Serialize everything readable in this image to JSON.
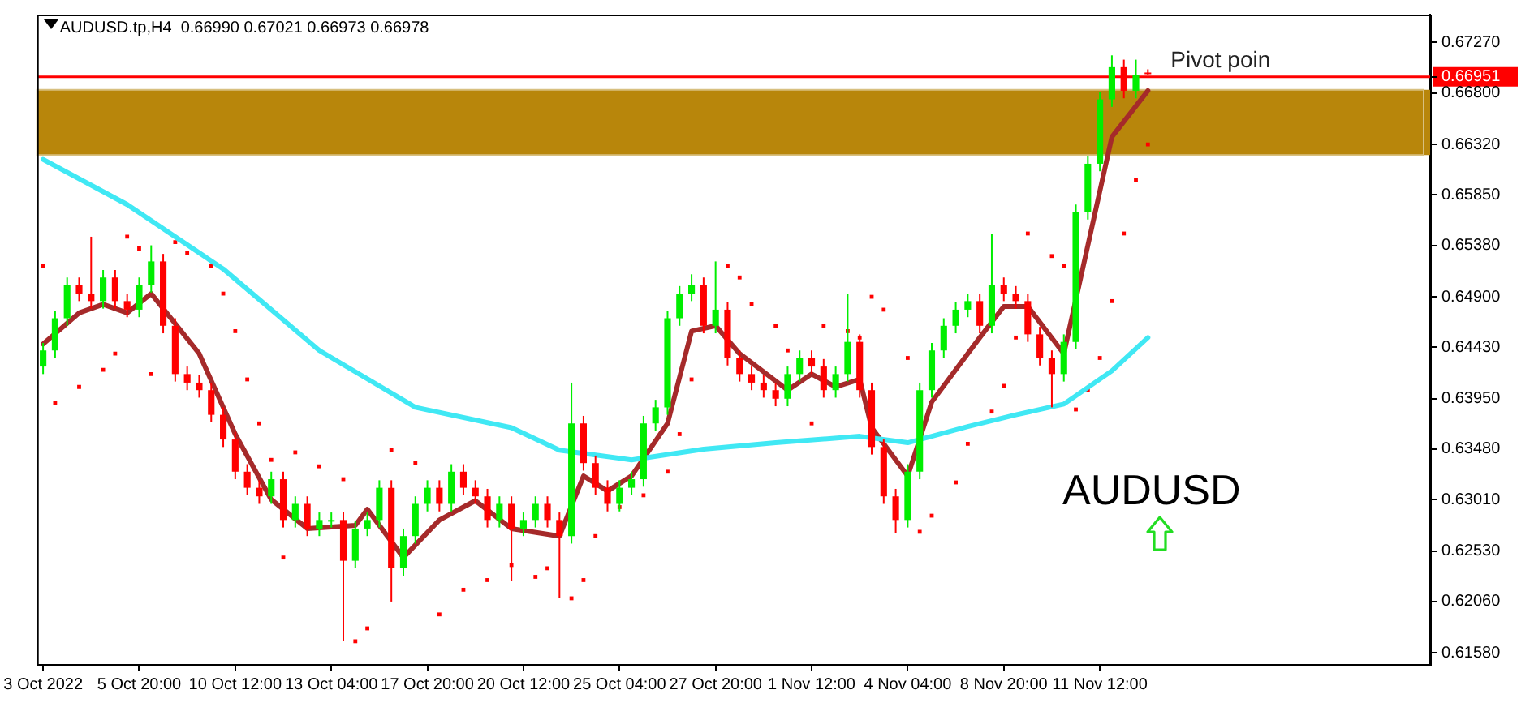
{
  "chart_data": {
    "type": "candlestick",
    "title": "AUDUSD.tp,H4  0.66990 0.67021 0.66973 0.66978",
    "categories": [
      "3 Oct 2022",
      null,
      null,
      null,
      null,
      null,
      null,
      null,
      "5 Oct 20:00",
      null,
      null,
      null,
      null,
      null,
      null,
      null,
      "10 Oct 12:00",
      null,
      null,
      null,
      null,
      null,
      null,
      null,
      "13 Oct 04:00",
      null,
      null,
      null,
      null,
      null,
      null,
      null,
      "17 Oct 20:00",
      null,
      null,
      null,
      null,
      null,
      null,
      null,
      "20 Oct 12:00",
      null,
      null,
      null,
      null,
      null,
      null,
      null,
      "25 Oct 04:00",
      null,
      null,
      null,
      null,
      null,
      null,
      null,
      "27 Oct 20:00",
      null,
      null,
      null,
      null,
      null,
      null,
      null,
      "1 Nov 12:00",
      null,
      null,
      null,
      null,
      null,
      null,
      null,
      "4 Nov 04:00",
      null,
      null,
      null,
      null,
      null,
      null,
      null,
      "8 Nov 20:00",
      null,
      null,
      null,
      null,
      null,
      null,
      null,
      "11 Nov 12:00",
      null,
      null,
      null,
      null,
      null,
      null,
      null,
      null,
      null,
      null,
      null,
      null,
      null,
      null,
      null,
      null,
      null,
      null,
      null,
      null,
      null,
      null,
      null,
      null,
      null,
      null,
      null
    ],
    "ohlc": [
      [
        0.6425,
        0.6447,
        0.6418,
        0.644
      ],
      [
        0.644,
        0.6477,
        0.6433,
        0.647
      ],
      [
        0.647,
        0.6508,
        0.6463,
        0.6501
      ],
      [
        0.6501,
        0.6508,
        0.6486,
        0.6493
      ],
      [
        0.6493,
        0.6546,
        0.6479,
        0.6486
      ],
      [
        0.6486,
        0.6515,
        0.6479,
        0.6508
      ],
      [
        0.6508,
        0.6515,
        0.6479,
        0.6486
      ],
      [
        0.6486,
        0.6493,
        0.6471,
        0.6478
      ],
      [
        0.6478,
        0.6508,
        0.6471,
        0.6501
      ],
      [
        0.6501,
        0.6538,
        0.6494,
        0.6523
      ],
      [
        0.6523,
        0.653,
        0.6456,
        0.6463
      ],
      [
        0.6463,
        0.647,
        0.6411,
        0.6418
      ],
      [
        0.6418,
        0.6425,
        0.6403,
        0.641
      ],
      [
        0.641,
        0.6417,
        0.6396,
        0.6403
      ],
      [
        0.6403,
        0.641,
        0.6373,
        0.638
      ],
      [
        0.638,
        0.6387,
        0.635,
        0.6357
      ],
      [
        0.6357,
        0.6364,
        0.632,
        0.6327
      ],
      [
        0.6327,
        0.6334,
        0.6305,
        0.6312
      ],
      [
        0.6312,
        0.6319,
        0.6297,
        0.6304
      ],
      [
        0.6304,
        0.6327,
        0.6297,
        0.632
      ],
      [
        0.632,
        0.6327,
        0.6275,
        0.6282
      ],
      [
        0.6282,
        0.6304,
        0.6275,
        0.6297
      ],
      [
        0.6297,
        0.6304,
        0.6267,
        0.6274
      ],
      [
        0.6274,
        0.6289,
        0.6267,
        0.6282
      ],
      [
        0.6282,
        0.6289,
        0.6275,
        0.6282
      ],
      [
        0.6282,
        0.6289,
        0.6169,
        0.6244
      ],
      [
        0.6244,
        0.6281,
        0.6237,
        0.6274
      ],
      [
        0.6274,
        0.6289,
        0.6267,
        0.6282
      ],
      [
        0.6282,
        0.6319,
        0.6275,
        0.6312
      ],
      [
        0.6312,
        0.6319,
        0.6206,
        0.6237
      ],
      [
        0.6237,
        0.6274,
        0.623,
        0.6267
      ],
      [
        0.6267,
        0.6304,
        0.626,
        0.6297
      ],
      [
        0.6297,
        0.6319,
        0.629,
        0.6312
      ],
      [
        0.6312,
        0.6319,
        0.629,
        0.6297
      ],
      [
        0.6297,
        0.6334,
        0.629,
        0.6327
      ],
      [
        0.6327,
        0.6334,
        0.6305,
        0.6312
      ],
      [
        0.6312,
        0.6319,
        0.6297,
        0.6304
      ],
      [
        0.6304,
        0.6311,
        0.6275,
        0.6282
      ],
      [
        0.6282,
        0.6304,
        0.6275,
        0.6297
      ],
      [
        0.6297,
        0.6304,
        0.6225,
        0.6274
      ],
      [
        0.6274,
        0.6289,
        0.6267,
        0.6282
      ],
      [
        0.6282,
        0.6304,
        0.6275,
        0.6297
      ],
      [
        0.6297,
        0.6304,
        0.6275,
        0.6282
      ],
      [
        0.6282,
        0.6289,
        0.6209,
        0.6267
      ],
      [
        0.6267,
        0.641,
        0.626,
        0.6372
      ],
      [
        0.6372,
        0.6379,
        0.6328,
        0.6335
      ],
      [
        0.6335,
        0.6342,
        0.6305,
        0.6312
      ],
      [
        0.6312,
        0.6319,
        0.629,
        0.6297
      ],
      [
        0.6297,
        0.6319,
        0.629,
        0.6312
      ],
      [
        0.6312,
        0.6327,
        0.6305,
        0.632
      ],
      [
        0.632,
        0.6379,
        0.6313,
        0.6372
      ],
      [
        0.6372,
        0.6394,
        0.6365,
        0.6387
      ],
      [
        0.6387,
        0.6477,
        0.638,
        0.647
      ],
      [
        0.647,
        0.65,
        0.6463,
        0.6493
      ],
      [
        0.6493,
        0.6511,
        0.6486,
        0.6501
      ],
      [
        0.6501,
        0.6508,
        0.6456,
        0.6463
      ],
      [
        0.6463,
        0.6523,
        0.6456,
        0.6478
      ],
      [
        0.6478,
        0.6485,
        0.6426,
        0.6433
      ],
      [
        0.6433,
        0.644,
        0.6411,
        0.6418
      ],
      [
        0.6418,
        0.6425,
        0.6403,
        0.641
      ],
      [
        0.641,
        0.6417,
        0.6396,
        0.6403
      ],
      [
        0.6403,
        0.641,
        0.6388,
        0.6395
      ],
      [
        0.6395,
        0.6425,
        0.6388,
        0.6418
      ],
      [
        0.6418,
        0.644,
        0.6411,
        0.6433
      ],
      [
        0.6433,
        0.644,
        0.6418,
        0.6425
      ],
      [
        0.6425,
        0.6432,
        0.6396,
        0.6403
      ],
      [
        0.6403,
        0.6425,
        0.6396,
        0.6418
      ],
      [
        0.6418,
        0.6493,
        0.6411,
        0.6448
      ],
      [
        0.6448,
        0.6455,
        0.6396,
        0.6403
      ],
      [
        0.6403,
        0.641,
        0.6343,
        0.635
      ],
      [
        0.635,
        0.6357,
        0.6297,
        0.6304
      ],
      [
        0.6304,
        0.6311,
        0.627,
        0.6282
      ],
      [
        0.6282,
        0.6334,
        0.6275,
        0.6327
      ],
      [
        0.6327,
        0.641,
        0.632,
        0.6403
      ],
      [
        0.6403,
        0.6447,
        0.6396,
        0.644
      ],
      [
        0.644,
        0.647,
        0.6433,
        0.6463
      ],
      [
        0.6463,
        0.6485,
        0.6456,
        0.6478
      ],
      [
        0.6478,
        0.6493,
        0.6471,
        0.6486
      ],
      [
        0.6486,
        0.6493,
        0.6456,
        0.6463
      ],
      [
        0.6463,
        0.6549,
        0.6456,
        0.6501
      ],
      [
        0.6501,
        0.6508,
        0.6486,
        0.6493
      ],
      [
        0.6493,
        0.65,
        0.6479,
        0.6486
      ],
      [
        0.6486,
        0.6493,
        0.6448,
        0.6455
      ],
      [
        0.6455,
        0.6462,
        0.6426,
        0.6433
      ],
      [
        0.6433,
        0.644,
        0.6387,
        0.6418
      ],
      [
        0.6418,
        0.6455,
        0.6411,
        0.6448
      ],
      [
        0.6448,
        0.6576,
        0.6441,
        0.6569
      ],
      [
        0.6569,
        0.6621,
        0.6562,
        0.6614
      ],
      [
        0.6614,
        0.6681,
        0.6607,
        0.6674
      ],
      [
        0.6674,
        0.6715,
        0.6667,
        0.6704
      ],
      [
        0.6704,
        0.6711,
        0.6675,
        0.6682
      ],
      [
        0.6682,
        0.6711,
        0.6675,
        0.6697
      ],
      [
        0.6699,
        0.6702,
        0.6697,
        0.6698
      ],
      null,
      null,
      null,
      null,
      null,
      null,
      null,
      null,
      null,
      null,
      null,
      null,
      null,
      null,
      null,
      null,
      null,
      null,
      null,
      null,
      null,
      null,
      null
    ],
    "ylim": [
      0.6147,
      0.6753
    ],
    "yticks": [
      {
        "value": 0.6727,
        "label": "0.67270"
      },
      {
        "value": 0.66951,
        "label": "0.66951"
      },
      {
        "value": 0.668,
        "label": "0.66800"
      },
      {
        "value": 0.6632,
        "label": "0.66320"
      },
      {
        "value": 0.6585,
        "label": "0.65850"
      },
      {
        "value": 0.6538,
        "label": "0.65380"
      },
      {
        "value": 0.649,
        "label": "0.64900"
      },
      {
        "value": 0.6443,
        "label": "0.64430"
      },
      {
        "value": 0.6395,
        "label": "0.63950"
      },
      {
        "value": 0.6348,
        "label": "0.63480"
      },
      {
        "value": 0.6301,
        "label": "0.63010"
      },
      {
        "value": 0.6253,
        "label": "0.62530"
      },
      {
        "value": 0.6206,
        "label": "0.62060"
      },
      {
        "value": 0.6158,
        "label": "0.61580"
      }
    ],
    "series": [
      {
        "type": "line",
        "color": "#40e8f4",
        "values": [
          0.6618,
          null,
          null,
          null,
          null,
          null,
          null,
          0.6576,
          null,
          null,
          null,
          null,
          null,
          null,
          null,
          0.6516,
          null,
          null,
          null,
          null,
          null,
          null,
          null,
          0.644,
          null,
          null,
          null,
          null,
          null,
          null,
          null,
          0.6387,
          null,
          null,
          null,
          null,
          null,
          null,
          null,
          0.6368,
          null,
          null,
          null,
          0.6347,
          null,
          null,
          null,
          null,
          null,
          0.6338,
          null,
          null,
          null,
          null,
          null,
          0.6348,
          null,
          null,
          null,
          null,
          null,
          0.6354,
          null,
          null,
          null,
          null,
          null,
          null,
          0.636,
          null,
          null,
          null,
          0.6354,
          null,
          null,
          null,
          null,
          0.6369,
          null,
          null,
          null,
          0.638,
          null,
          null,
          null,
          0.639,
          null,
          null,
          null,
          0.6421,
          null,
          null,
          0.6452,
          null,
          null,
          null,
          null,
          null,
          null,
          null,
          null,
          null,
          null,
          null,
          null,
          null,
          null,
          null,
          null,
          null,
          null,
          null,
          null,
          null,
          null,
          null
        ]
      },
      {
        "type": "line",
        "color": "#a52a2a",
        "values": [
          0.6446,
          null,
          null,
          0.6475,
          null,
          0.6483,
          null,
          0.6475,
          null,
          0.6493,
          null,
          null,
          null,
          0.6437,
          null,
          null,
          0.6362,
          null,
          null,
          0.6301,
          null,
          null,
          0.6274,
          null,
          null,
          null,
          0.6277,
          0.6292,
          null,
          null,
          0.6247,
          null,
          null,
          0.6282,
          null,
          null,
          0.63,
          null,
          null,
          0.6274,
          null,
          null,
          null,
          0.6267,
          null,
          0.6323,
          null,
          0.6309,
          null,
          0.6323,
          null,
          null,
          0.6372,
          null,
          0.6458,
          null,
          0.6463,
          null,
          0.6437,
          null,
          null,
          null,
          0.6403,
          null,
          0.6418,
          null,
          0.6406,
          null,
          0.6413,
          0.6368,
          null,
          null,
          0.6323,
          null,
          0.6392,
          null,
          0.6422,
          null,
          0.6452,
          null,
          0.6481,
          null,
          0.6481,
          null,
          null,
          0.6437,
          null,
          0.6538,
          null,
          0.6639,
          null,
          null,
          0.6682,
          null,
          null,
          null,
          null,
          null,
          null,
          null,
          null,
          null,
          null,
          null,
          null,
          null,
          null,
          null,
          null,
          null,
          null,
          null,
          null,
          null,
          null,
          null
        ]
      },
      {
        "type": "scatter",
        "marker": "square",
        "color": "#ff0000",
        "values": [
          0.6519,
          0.6391,
          null,
          0.6406,
          null,
          0.6422,
          0.6437,
          0.6546,
          0.6535,
          0.6418,
          null,
          0.6541,
          0.6531,
          null,
          0.6519,
          0.6493,
          0.6458,
          0.6413,
          0.6372,
          0.6338,
          0.6247,
          0.6345,
          null,
          0.6332,
          null,
          0.632,
          0.6169,
          0.6181,
          null,
          0.6347,
          null,
          0.6335,
          null,
          0.6194,
          null,
          0.6217,
          null,
          0.6226,
          null,
          0.624,
          null,
          0.6229,
          0.6237,
          null,
          0.6209,
          0.6226,
          0.6267,
          null,
          0.6294,
          null,
          0.6305,
          null,
          0.6327,
          0.6362,
          0.6413,
          null,
          null,
          0.6519,
          0.6508,
          0.6483,
          null,
          0.6463,
          0.644,
          null,
          0.6372,
          0.6463,
          null,
          0.6458,
          0.6452,
          0.649,
          0.6478,
          null,
          0.6433,
          0.6271,
          0.6286,
          null,
          0.6317,
          0.6353,
          null,
          0.6383,
          0.6407,
          0.6452,
          0.6549,
          null,
          0.6528,
          0.6519,
          0.6385,
          0.6403,
          0.6433,
          0.6486,
          0.6549,
          0.6599,
          0.6632,
          null,
          null,
          null,
          null,
          null,
          null,
          null,
          null,
          null,
          null,
          null,
          null,
          null,
          null,
          null,
          null,
          null,
          null,
          null,
          null,
          null,
          null,
          null
        ]
      }
    ],
    "bands": [
      {
        "axis": "y",
        "from": 0.6622,
        "to": 0.6683,
        "color": "#b8860b"
      }
    ],
    "ref_lines": [
      {
        "axis": "y",
        "value": 0.66951,
        "label": "Pivot poin",
        "color": "#ff0000"
      }
    ],
    "annotations": [
      "AUDUSD"
    ]
  }
}
